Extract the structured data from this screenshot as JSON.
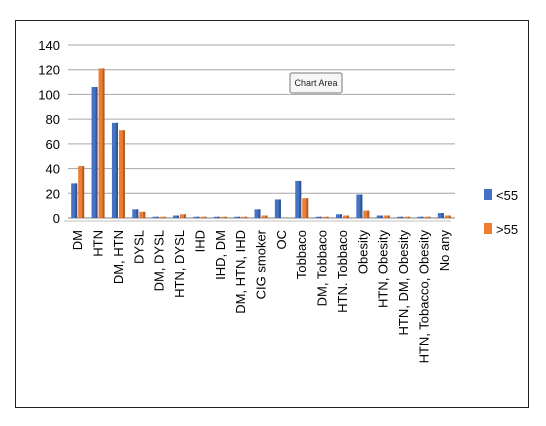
{
  "chart_data": {
    "type": "bar",
    "categories": [
      "DM",
      "HTN",
      "DM, HTN",
      "DYSL",
      "DM, DYSL",
      "HTN, DYSL",
      "IHD",
      "IHD, DM",
      "DM, HTN, IHD",
      "CIG smoker",
      "OC",
      "Tobbaco",
      "DM, Tobbaco",
      "HTN. Tobbaco",
      "Obesity",
      "HTN, Obesity",
      "HTN, DM, Obesity",
      "HTN, Tobacco, Obesity",
      "No any"
    ],
    "series": [
      {
        "name": "<55",
        "color": "#4472C4",
        "values": [
          28,
          106,
          77,
          7,
          1,
          2,
          1,
          1,
          1,
          7,
          15,
          30,
          1,
          3,
          19,
          2,
          1,
          1,
          4
        ]
      },
      {
        "name": ">55",
        "color": "#ED7D31",
        "values": [
          42,
          121,
          71,
          5,
          1,
          3,
          1,
          1,
          1,
          2,
          0,
          16,
          1,
          2,
          6,
          2,
          1,
          1,
          2
        ]
      }
    ],
    "yticks": [
      "0",
      "20",
      "40",
      "60",
      "80",
      "100",
      "120",
      "140"
    ],
    "ylim": [
      0,
      140
    ],
    "grid": true,
    "legend_position": "right",
    "tooltip": "Chart Area"
  }
}
